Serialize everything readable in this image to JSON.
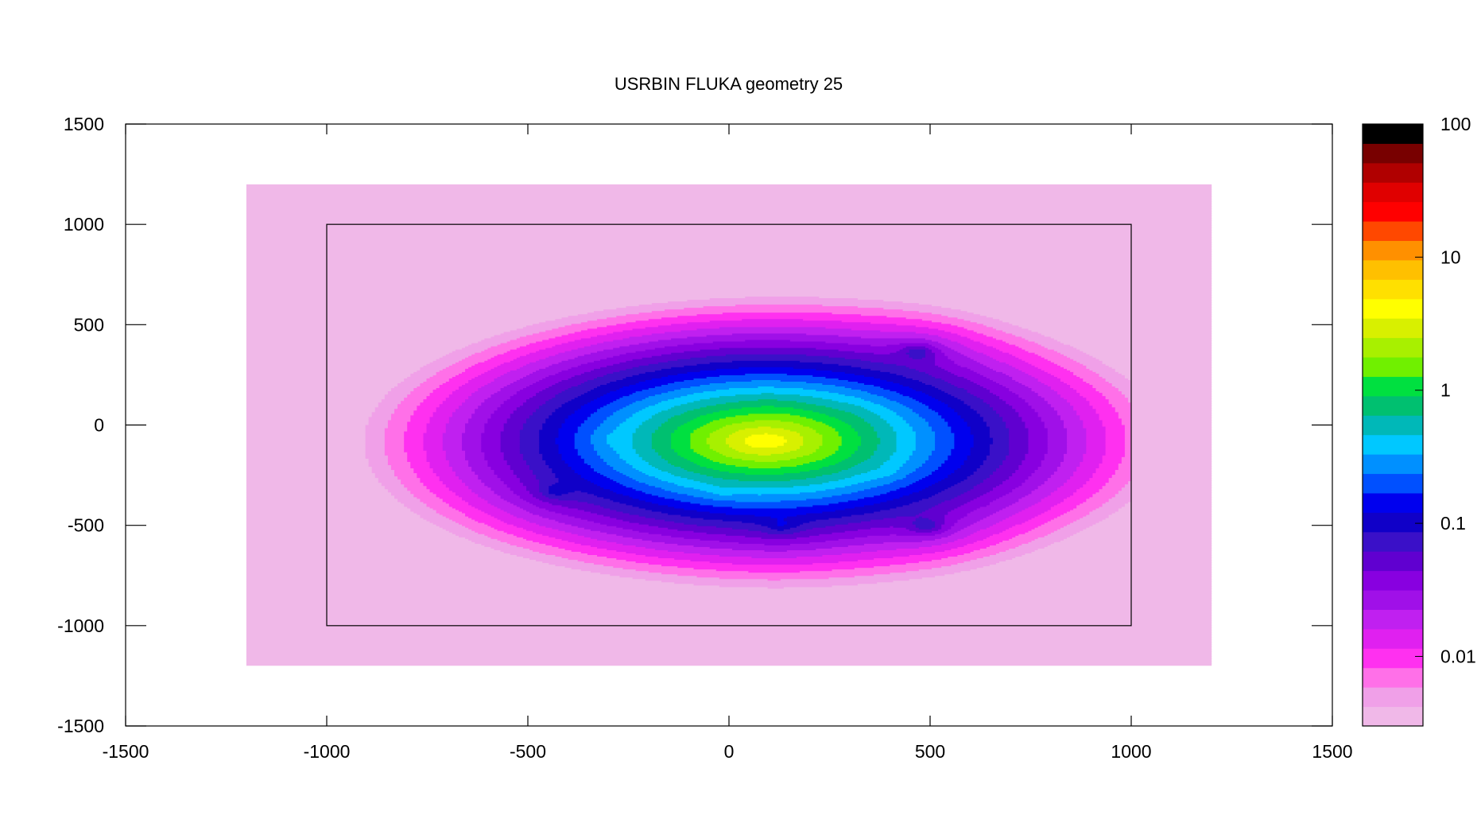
{
  "chart_data": {
    "type": "heatmap",
    "title": "USRBIN FLUKA geometry 25",
    "xlabel": "",
    "ylabel": "",
    "xlim": [
      -1500,
      1500
    ],
    "ylim": [
      -1500,
      1500
    ],
    "x_ticks": [
      -1500,
      -1000,
      -500,
      0,
      500,
      1000,
      1500
    ],
    "y_ticks": [
      1500,
      1000,
      500,
      0,
      -500,
      -1000,
      -1500
    ],
    "colorbar": {
      "scale": "log",
      "range": [
        0.003,
        100
      ],
      "tick_values": [
        100,
        10,
        1,
        0.1,
        0.01
      ],
      "tick_labels": [
        "100",
        "10",
        "1",
        "0.1",
        "0.01"
      ]
    },
    "data_extent": {
      "x": [
        -1200,
        1200
      ],
      "y": [
        -1200,
        1200
      ]
    },
    "inner_box": {
      "x": [
        -1000,
        1000
      ],
      "y": [
        -1000,
        1000
      ]
    },
    "hotspots": [
      {
        "x": 100,
        "y": 100
      },
      {
        "x": 160,
        "y": 40
      },
      {
        "x": 320,
        "y": 70
      },
      {
        "x": 470,
        "y": 360
      },
      {
        "x": -300,
        "y": -70
      },
      {
        "x": -430,
        "y": -330
      },
      {
        "x": -20,
        "y": -330
      },
      {
        "x": 390,
        "y": -230
      },
      {
        "x": 130,
        "y": -500
      },
      {
        "x": 490,
        "y": -500
      }
    ],
    "colors": [
      "#f0b8e8",
      "#f0a0e8",
      "#ff70e8",
      "#ff30f0",
      "#e020f0",
      "#c020f0",
      "#a010e8",
      "#8800e0",
      "#6000d0",
      "#3a10c8",
      "#1000c8",
      "#0000ee",
      "#0050ff",
      "#0090ff",
      "#00c8ff",
      "#00b8b8",
      "#00c070",
      "#00e040",
      "#70f000",
      "#a8f000",
      "#d8f000",
      "#ffff00",
      "#ffe000",
      "#ffc000",
      "#ff9000",
      "#ff4800",
      "#ff0000",
      "#e00000",
      "#b00000",
      "#780000",
      "#000000"
    ]
  }
}
